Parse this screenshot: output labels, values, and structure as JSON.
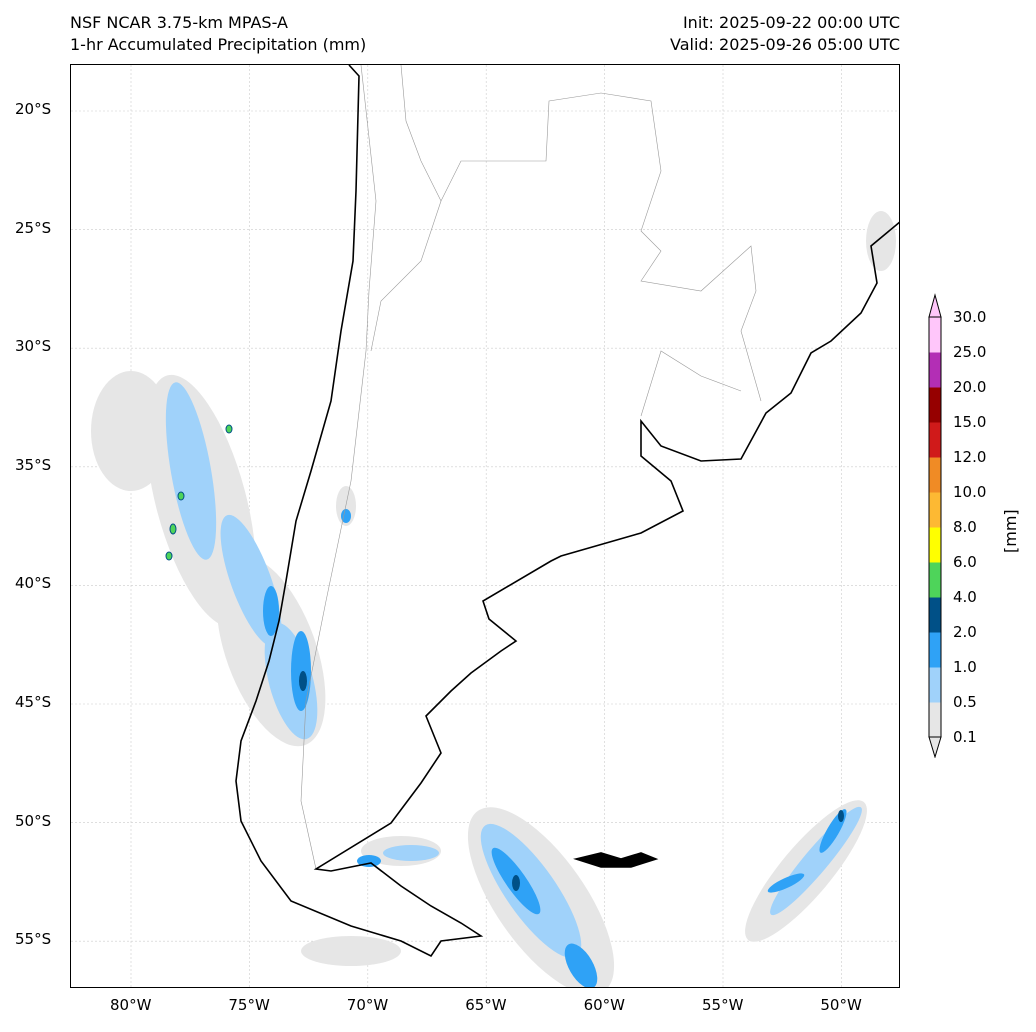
{
  "title_left": [
    "NSF NCAR 3.75-km MPAS-A",
    "1-hr Accumulated Precipitation (mm)"
  ],
  "title_right": [
    "Init: 2025-09-22 00:00 UTC",
    "Valid: 2025-09-26 05:00 UTC"
  ],
  "lat_ticks": [
    {
      "label": "20°S",
      "lat": -20
    },
    {
      "label": "25°S",
      "lat": -25
    },
    {
      "label": "30°S",
      "lat": -30
    },
    {
      "label": "35°S",
      "lat": -35
    },
    {
      "label": "40°S",
      "lat": -40
    },
    {
      "label": "45°S",
      "lat": -45
    },
    {
      "label": "50°S",
      "lat": -50
    },
    {
      "label": "55°S",
      "lat": -55
    }
  ],
  "lon_ticks": [
    {
      "label": "80°W",
      "lon": -80
    },
    {
      "label": "75°W",
      "lon": -75
    },
    {
      "label": "70°W",
      "lon": -70
    },
    {
      "label": "65°W",
      "lon": -65
    },
    {
      "label": "60°W",
      "lon": -60
    },
    {
      "label": "55°W",
      "lon": -55
    },
    {
      "label": "50°W",
      "lon": -50
    }
  ],
  "extent": {
    "lon": [
      -82.5,
      -47.5
    ],
    "lat": [
      -57.1,
      -18.1
    ]
  },
  "colorbar": {
    "unit_label": "[mm]",
    "levels": [
      "0.1",
      "0.5",
      "1.0",
      "2.0",
      "4.0",
      "6.0",
      "8.0",
      "10.0",
      "12.0",
      "15.0",
      "20.0",
      "25.0",
      "30.0"
    ],
    "colors": [
      "#e6e6e6",
      "#a0d2fa",
      "#2fa2f6",
      "#005087",
      "#4ed45a",
      "#ffff00",
      "#fdb933",
      "#f08b25",
      "#d01a1a",
      "#960000",
      "#b32eb5",
      "#ffc6fa"
    ]
  }
}
